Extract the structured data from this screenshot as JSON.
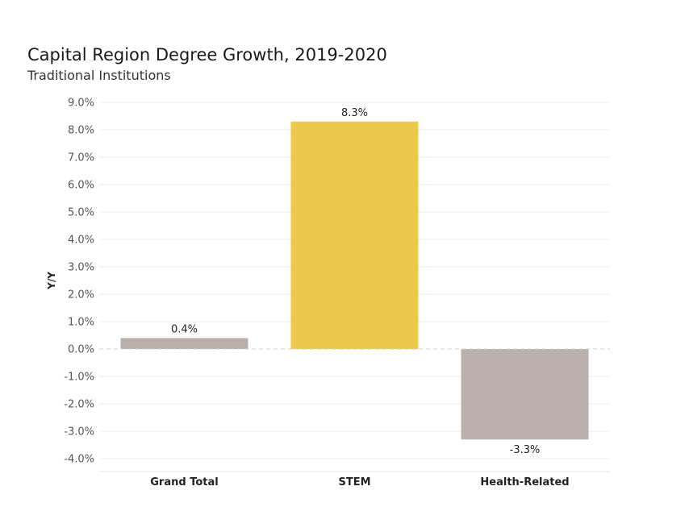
{
  "chart_data": {
    "type": "bar",
    "title": "Capital Region Degree Growth, 2019-2020",
    "subtitle": "Traditional Institutions",
    "xlabel": "",
    "ylabel": "Y/Y",
    "categories": [
      "Grand Total",
      "STEM",
      "Health-Related"
    ],
    "values": [
      0.4,
      8.3,
      -3.3
    ],
    "data_labels": [
      "0.4%",
      "8.3%",
      "-3.3%"
    ],
    "bar_colors": [
      "#bab0ab",
      "#ecc94b",
      "#bab0ab"
    ],
    "ylim": [
      -4.0,
      9.0
    ],
    "yticks": [
      9.0,
      8.0,
      7.0,
      6.0,
      5.0,
      4.0,
      3.0,
      2.0,
      1.0,
      0.0,
      -1.0,
      -2.0,
      -3.0,
      -4.0
    ],
    "ytick_labels": [
      "9.0%",
      "8.0%",
      "7.0%",
      "6.0%",
      "5.0%",
      "4.0%",
      "3.0%",
      "2.0%",
      "1.0%",
      "0.0%",
      "-1.0%",
      "-2.0%",
      "-3.0%",
      "-4.0%"
    ],
    "grid": true,
    "unit": "%"
  }
}
